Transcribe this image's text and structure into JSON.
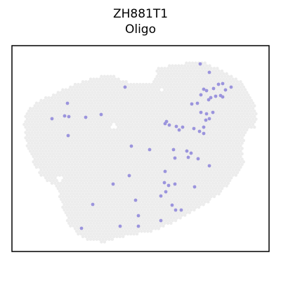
{
  "chart_data": {
    "type": "scatter",
    "title_lines": [
      "ZH881T1",
      "Oligo"
    ],
    "xlabel": "",
    "ylabel": "",
    "grid": false,
    "legend": "none",
    "colors": {
      "background": "#ececec",
      "highlight": "#9b94dd",
      "frame": "#000000"
    },
    "tissue_rows": [
      [
        -1,
        -1
      ],
      [
        -1,
        -1
      ],
      [
        -1,
        -1
      ],
      [
        -1,
        -1
      ],
      [
        -1,
        -1
      ],
      [
        -1,
        -1
      ],
      [
        -1,
        -1
      ],
      [
        -1,
        -1
      ],
      [
        -1,
        -1
      ],
      [
        -1,
        -1
      ],
      [
        -1,
        -1
      ],
      [
        -1,
        -1
      ],
      [
        -1,
        -1
      ],
      [
        -1,
        -1
      ],
      [
        -1,
        -1
      ],
      [
        -1,
        -1
      ],
      [
        -1,
        -1
      ],
      [
        -1,
        -1
      ],
      [
        -1,
        -1
      ],
      [
        -1,
        -1
      ],
      [
        -1,
        -1
      ],
      [
        -1,
        -1
      ],
      [
        -1,
        -1
      ],
      [
        -1,
        -1
      ],
      [
        -1,
        -1
      ],
      [
        -1,
        -1
      ],
      [
        -1,
        -1
      ],
      [
        -1,
        -1
      ]
    ],
    "spots": [
      [
        96,
        147
      ],
      [
        178,
        124
      ],
      [
        92,
        165
      ],
      [
        98,
        166
      ],
      [
        74,
        169
      ],
      [
        122,
        167
      ],
      [
        144,
        163
      ],
      [
        97,
        193
      ],
      [
        285,
        91
      ],
      [
        298,
        103
      ],
      [
        290,
        127
      ],
      [
        294,
        129
      ],
      [
        304,
        126
      ],
      [
        311,
        120
      ],
      [
        317,
        119
      ],
      [
        329,
        124
      ],
      [
        321,
        128
      ],
      [
        300,
        139
      ],
      [
        286,
        135
      ],
      [
        297,
        142
      ],
      [
        307,
        137
      ],
      [
        314,
        136
      ],
      [
        317,
        138
      ],
      [
        273,
        148
      ],
      [
        281,
        147
      ],
      [
        286,
        160
      ],
      [
        294,
        162
      ],
      [
        303,
        160
      ],
      [
        293,
        171
      ],
      [
        298,
        169
      ],
      [
        290,
        181
      ],
      [
        284,
        187
      ],
      [
        290,
        190
      ],
      [
        237,
        173
      ],
      [
        241,
        178
      ],
      [
        251,
        180
      ],
      [
        260,
        181
      ],
      [
        255,
        185
      ],
      [
        276,
        183
      ],
      [
        235,
        176
      ],
      [
        187,
        208
      ],
      [
        213,
        213
      ],
      [
        247,
        213
      ],
      [
        266,
        215
      ],
      [
        272,
        218
      ],
      [
        249,
        225
      ],
      [
        268,
        224
      ],
      [
        282,
        226
      ],
      [
        298,
        236
      ],
      [
        184,
        250
      ],
      [
        161,
        262
      ],
      [
        235,
        244
      ],
      [
        234,
        260
      ],
      [
        240,
        264
      ],
      [
        249,
        262
      ],
      [
        236,
        273
      ],
      [
        229,
        279
      ],
      [
        277,
        266
      ],
      [
        132,
        291
      ],
      [
        193,
        285
      ],
      [
        245,
        292
      ],
      [
        250,
        299
      ],
      [
        258,
        299
      ],
      [
        197,
        307
      ],
      [
        171,
        322
      ],
      [
        197,
        322
      ],
      [
        229,
        314
      ],
      [
        116,
        325
      ]
    ]
  }
}
